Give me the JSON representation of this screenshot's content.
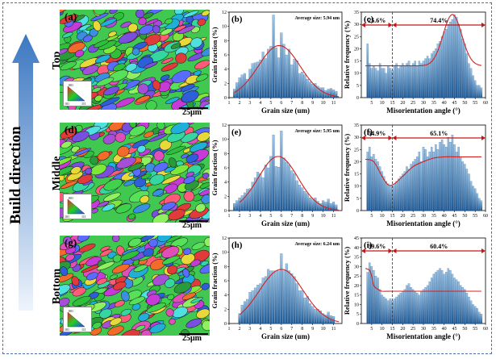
{
  "sidebar": {
    "label": "Build direction"
  },
  "rows": [
    {
      "position": "Top",
      "ebsd_label": "(a)",
      "scale_bar": "25μm",
      "ipf_legend": {
        "top": "001",
        "bottom_left": "101",
        "bottom_right": "111"
      },
      "grain_chart": {
        "panel": "(b)",
        "type": "bar",
        "annotation": "Average size: 5.94 um",
        "xlabel": "Grain size (um)",
        "ylabel": "Grain fraction (%)",
        "xlim": [
          1,
          11.8
        ],
        "ylim": [
          0,
          12
        ],
        "xticks": [
          1,
          2,
          3,
          4,
          5,
          6,
          7,
          8,
          9,
          10,
          11
        ],
        "yticks": [
          0,
          2,
          4,
          6,
          8,
          10,
          12
        ],
        "x": [
          1.5,
          1.75,
          2,
          2.25,
          2.5,
          2.75,
          3,
          3.25,
          3.5,
          3.75,
          4,
          4.25,
          4.5,
          4.75,
          5,
          5.25,
          5.5,
          5.75,
          6,
          6.25,
          6.5,
          6.75,
          7,
          7.25,
          7.5,
          7.75,
          8,
          8.25,
          8.5,
          8.75,
          9,
          9.25,
          9.5,
          9.75,
          10,
          10.25,
          10.5,
          10.75,
          11,
          11.25
        ],
        "values": [
          1.2,
          2.1,
          2.8,
          3.2,
          3.4,
          2.6,
          4.0,
          4.8,
          4.9,
          5.0,
          5.3,
          6.4,
          5.5,
          6.8,
          7.2,
          11.6,
          7.0,
          5.6,
          9.1,
          7.5,
          6.0,
          6.8,
          4.6,
          5.4,
          5.2,
          3.4,
          3.6,
          3.2,
          2.6,
          2.2,
          1.9,
          2.0,
          1.6,
          1.4,
          1.4,
          1.0,
          1.2,
          1.3,
          1.1,
          0.9
        ],
        "fit": {
          "mean": 5.8,
          "sd": 2.0,
          "peak": 7.3,
          "from": 1.5,
          "to": 11.5
        }
      },
      "mis_chart": {
        "panel": "(c)",
        "type": "bar",
        "xlabel": "Misorientation angle (°)",
        "ylabel": "Relative frequency (%)",
        "xlim": [
          0,
          60
        ],
        "ylim": [
          0,
          35
        ],
        "xticks": [
          5,
          10,
          15,
          20,
          25,
          30,
          35,
          40,
          45,
          50,
          55,
          60
        ],
        "yticks": [
          0,
          5,
          10,
          15,
          20,
          25,
          30,
          35
        ],
        "x": [
          3,
          4,
          5,
          6,
          7,
          8,
          9,
          10,
          11,
          12,
          13,
          14,
          15,
          16,
          17,
          18,
          19,
          20,
          21,
          22,
          23,
          24,
          25,
          26,
          27,
          28,
          29,
          30,
          31,
          32,
          33,
          34,
          35,
          36,
          37,
          38,
          39,
          40,
          41,
          42,
          43,
          44,
          45,
          46,
          47,
          48,
          49,
          50,
          51,
          52,
          53,
          54,
          55,
          56,
          57,
          58
        ],
        "values": [
          22,
          14,
          12,
          13,
          12,
          11,
          14,
          12,
          12,
          10,
          13,
          12,
          11,
          13,
          14,
          12,
          13,
          14,
          13,
          14,
          15,
          13,
          14,
          15,
          13,
          15,
          14,
          15,
          16,
          17,
          16,
          18,
          19,
          20,
          22,
          23,
          25,
          27,
          28,
          30,
          31,
          32,
          34,
          33,
          30,
          28,
          24,
          22,
          18,
          14,
          12,
          9,
          7,
          5,
          5,
          4
        ],
        "fit": {
          "base": 13,
          "peak": 21,
          "center": 44,
          "width": 4.5
        },
        "split_angle": 15,
        "low_pct": "25.6%",
        "high_pct": "74.4%"
      }
    },
    {
      "position": "Middle",
      "ebsd_label": "(d)",
      "scale_bar": "25μm",
      "ipf_legend": {
        "top": "001",
        "bottom_left": "101",
        "bottom_right": "111"
      },
      "grain_chart": {
        "panel": "(e)",
        "type": "bar",
        "annotation": "Average size: 5.95 um",
        "xlabel": "Grain size (um)",
        "ylabel": "Grain fraction (%)",
        "xlim": [
          1,
          11.8
        ],
        "ylim": [
          0,
          12
        ],
        "xticks": [
          1,
          2,
          3,
          4,
          5,
          6,
          7,
          8,
          9,
          10,
          11
        ],
        "yticks": [
          0,
          2,
          4,
          6,
          8,
          10,
          12
        ],
        "x": [
          1.5,
          1.75,
          2,
          2.25,
          2.5,
          2.75,
          3,
          3.25,
          3.5,
          3.75,
          4,
          4.25,
          4.5,
          4.75,
          5,
          5.25,
          5.5,
          5.75,
          6,
          6.25,
          6.5,
          6.75,
          7,
          7.25,
          7.5,
          7.75,
          8,
          8.25,
          8.5,
          8.75,
          9,
          9.25,
          9.5,
          9.75,
          10,
          10.25,
          10.5,
          10.75,
          11,
          11.25
        ],
        "values": [
          1.0,
          1.4,
          1.8,
          2.1,
          2.5,
          3.0,
          3.1,
          4.0,
          4.6,
          5.4,
          5.2,
          4.6,
          6.4,
          6.0,
          7.6,
          10.6,
          6.2,
          6.1,
          11.2,
          7.4,
          6.8,
          6.4,
          5.6,
          5.2,
          4.2,
          3.6,
          3.2,
          2.7,
          2.4,
          1.8,
          1.6,
          1.8,
          1.3,
          1.0,
          1.4,
          1.2,
          1.6,
          1.0,
          1.2,
          0.8
        ],
        "fit": {
          "mean": 5.7,
          "sd": 1.9,
          "peak": 7.6,
          "from": 2,
          "to": 11.5
        }
      },
      "mis_chart": {
        "panel": "(f)",
        "type": "bar",
        "xlabel": "Misorientation angle (°)",
        "ylabel": "Relative frequency (%)",
        "xlim": [
          0,
          60
        ],
        "ylim": [
          0,
          35
        ],
        "xticks": [
          5,
          10,
          15,
          20,
          25,
          30,
          35,
          40,
          45,
          50,
          55,
          60
        ],
        "yticks": [
          0,
          5,
          10,
          15,
          20,
          25,
          30,
          35
        ],
        "x": [
          3,
          4,
          5,
          6,
          7,
          8,
          9,
          10,
          11,
          12,
          13,
          14,
          15,
          16,
          17,
          18,
          19,
          20,
          21,
          22,
          23,
          24,
          25,
          26,
          27,
          28,
          29,
          30,
          31,
          32,
          33,
          34,
          35,
          36,
          37,
          38,
          39,
          40,
          41,
          42,
          43,
          44,
          45,
          46,
          47,
          48,
          49,
          50,
          51,
          52,
          53,
          54,
          55,
          56,
          57,
          58
        ],
        "values": [
          24,
          26,
          22,
          23,
          21,
          20,
          18,
          16,
          14,
          12,
          11,
          10,
          10,
          11,
          12,
          13,
          14,
          15,
          16,
          18,
          17,
          19,
          20,
          21,
          22,
          24,
          20,
          26,
          25,
          22,
          24,
          26,
          24,
          27,
          25,
          28,
          29,
          27,
          26,
          30,
          28,
          31,
          27,
          24,
          26,
          22,
          20,
          19,
          17,
          15,
          12,
          10,
          9,
          7,
          5,
          4
        ],
        "fit": {
          "type": "smooth",
          "points": [
            [
              2,
              21
            ],
            [
              6,
              20
            ],
            [
              10,
              14
            ],
            [
              13,
              10.5
            ],
            [
              16,
              11
            ],
            [
              20,
              14
            ],
            [
              25,
              18
            ],
            [
              30,
              20
            ],
            [
              35,
              21.5
            ],
            [
              40,
              22
            ],
            [
              45,
              22
            ],
            [
              50,
              22
            ],
            [
              58,
              22
            ]
          ]
        },
        "split_angle": 15,
        "low_pct": "34.9%",
        "high_pct": "65.1%"
      }
    },
    {
      "position": "Bottom",
      "ebsd_label": "(g)",
      "scale_bar": "25μm",
      "ipf_legend": {
        "top": "001",
        "bottom_left": "101",
        "bottom_right": "111"
      },
      "grain_chart": {
        "panel": "(h)",
        "type": "bar",
        "annotation": "Average size: 6.24 um",
        "xlabel": "Grain size (um)",
        "ylabel": "Grain fraction (%)",
        "xlim": [
          1,
          11.8
        ],
        "ylim": [
          0,
          12
        ],
        "xticks": [
          1,
          2,
          3,
          4,
          5,
          6,
          7,
          8,
          9,
          10,
          11
        ],
        "yticks": [
          0,
          2,
          4,
          6,
          8,
          10,
          12
        ],
        "x": [
          2,
          2.25,
          2.5,
          2.75,
          3,
          3.25,
          3.5,
          3.75,
          4,
          4.25,
          4.5,
          4.75,
          5,
          5.25,
          5.5,
          5.75,
          6,
          6.25,
          6.5,
          6.75,
          7,
          7.25,
          7.5,
          7.75,
          8,
          8.25,
          8.5,
          8.75,
          9,
          9.25,
          9.5,
          9.75,
          10,
          10.25,
          10.5,
          10.75,
          11
        ],
        "values": [
          1.4,
          2.6,
          3.1,
          3.4,
          4.4,
          4.6,
          5.0,
          5.4,
          5.6,
          6.4,
          6.6,
          7.6,
          7.4,
          7.4,
          7.4,
          7.4,
          9.8,
          7.4,
          8.4,
          7.4,
          7.0,
          6.6,
          5.6,
          4.6,
          4.6,
          3.6,
          3.8,
          2.8,
          2.4,
          2.0,
          2.0,
          1.8,
          1.4,
          1.2,
          1.6,
          1.1,
          1.0
        ],
        "fit": {
          "mean": 6.0,
          "sd": 2.1,
          "peak": 7.6,
          "from": 2,
          "to": 11.5
        }
      },
      "mis_chart": {
        "panel": "(i)",
        "type": "bar",
        "xlabel": "Misorientation angle (°)",
        "ylabel": "Relative frequency (%)",
        "xlim": [
          0,
          60
        ],
        "ylim": [
          0,
          45
        ],
        "xticks": [
          5,
          10,
          15,
          20,
          25,
          30,
          35,
          40,
          45,
          50,
          55,
          60
        ],
        "yticks": [
          0,
          5,
          10,
          15,
          20,
          25,
          30,
          35,
          40,
          45
        ],
        "x": [
          3,
          4,
          5,
          6,
          7,
          8,
          9,
          10,
          11,
          12,
          13,
          14,
          15,
          16,
          17,
          18,
          19,
          20,
          21,
          22,
          23,
          24,
          25,
          26,
          27,
          28,
          29,
          30,
          31,
          32,
          33,
          34,
          35,
          36,
          37,
          38,
          39,
          40,
          41,
          42,
          43,
          44,
          45,
          46,
          47,
          48,
          49,
          50,
          51,
          52,
          53,
          54,
          55,
          56,
          57,
          58
        ],
        "values": [
          27,
          32,
          30,
          28,
          25,
          24,
          18,
          15,
          14,
          13,
          12,
          13,
          12,
          13,
          14,
          15,
          16,
          17,
          18,
          20,
          21,
          19,
          18,
          17,
          16,
          15,
          17,
          18,
          19,
          20,
          22,
          24,
          26,
          27,
          28,
          29,
          28,
          26,
          27,
          29,
          28,
          26,
          24,
          23,
          22,
          20,
          19,
          18,
          16,
          14,
          12,
          10,
          9,
          8,
          6,
          5
        ],
        "fit": {
          "type": "smooth",
          "points": [
            [
              2,
              29
            ],
            [
              4,
              28
            ],
            [
              5,
              25
            ],
            [
              6,
              20
            ],
            [
              8,
              18
            ],
            [
              10,
              17
            ],
            [
              15,
              17
            ],
            [
              30,
              17
            ],
            [
              45,
              17
            ],
            [
              58,
              17
            ]
          ]
        },
        "split_angle": 15,
        "low_pct": "39.6%",
        "high_pct": "60.4%"
      }
    }
  ],
  "colors": {
    "bar_top": "#9cc6e8",
    "bar_bottom": "#1f5a96",
    "fit": "#d42020",
    "arrow": "#c21818",
    "frame": "#4a6fa8",
    "sidebar_dark": "#1e4f8f",
    "sidebar_light": "#e8f0fb"
  }
}
